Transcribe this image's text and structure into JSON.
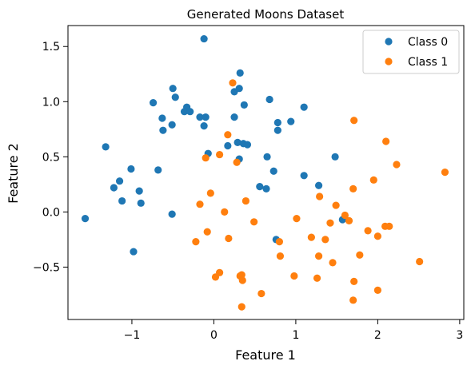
{
  "chart_data": {
    "type": "scatter",
    "title": "Generated Moons Dataset",
    "xlabel": "Feature 1",
    "ylabel": "Feature 2",
    "xlim": [
      -1.78,
      3.05
    ],
    "ylim": [
      -0.975,
      1.69
    ],
    "xticks": [
      -1,
      0,
      1,
      2,
      3
    ],
    "xtick_labels": [
      "−1",
      "0",
      "1",
      "2",
      "3"
    ],
    "yticks": [
      -0.5,
      0.0,
      0.5,
      1.0,
      1.5
    ],
    "ytick_labels": [
      "−0.5",
      "0.0",
      "0.5",
      "1.0",
      "1.5"
    ],
    "grid": false,
    "legend_position": "top-right",
    "series": [
      {
        "name": "Class 0",
        "color": "#1f77b4",
        "points": [
          [
            -0.12,
            1.57
          ],
          [
            0.32,
            1.26
          ],
          [
            -0.5,
            1.12
          ],
          [
            0.31,
            1.12
          ],
          [
            0.25,
            1.09
          ],
          [
            -0.47,
            1.04
          ],
          [
            0.68,
            1.02
          ],
          [
            -0.74,
            0.99
          ],
          [
            0.37,
            0.97
          ],
          [
            -0.33,
            0.95
          ],
          [
            1.1,
            0.95
          ],
          [
            -0.36,
            0.91
          ],
          [
            -0.29,
            0.91
          ],
          [
            -0.17,
            0.86
          ],
          [
            -0.1,
            0.86
          ],
          [
            -0.63,
            0.85
          ],
          [
            0.25,
            0.86
          ],
          [
            0.78,
            0.81
          ],
          [
            0.94,
            0.82
          ],
          [
            -0.51,
            0.79
          ],
          [
            -0.12,
            0.78
          ],
          [
            -0.62,
            0.74
          ],
          [
            0.78,
            0.74
          ],
          [
            0.29,
            0.63
          ],
          [
            0.36,
            0.62
          ],
          [
            0.41,
            0.61
          ],
          [
            0.17,
            0.6
          ],
          [
            -1.32,
            0.59
          ],
          [
            -0.07,
            0.53
          ],
          [
            0.65,
            0.5
          ],
          [
            1.48,
            0.5
          ],
          [
            0.31,
            0.48
          ],
          [
            -1.01,
            0.39
          ],
          [
            -0.68,
            0.38
          ],
          [
            0.73,
            0.37
          ],
          [
            1.1,
            0.33
          ],
          [
            -1.15,
            0.28
          ],
          [
            1.28,
            0.24
          ],
          [
            0.56,
            0.23
          ],
          [
            0.64,
            0.21
          ],
          [
            -1.22,
            0.22
          ],
          [
            -0.91,
            0.19
          ],
          [
            -1.12,
            0.1
          ],
          [
            -0.89,
            0.08
          ],
          [
            -0.51,
            -0.02
          ],
          [
            -1.57,
            -0.06
          ],
          [
            1.57,
            -0.07
          ],
          [
            0.76,
            -0.25
          ],
          [
            -0.98,
            -0.36
          ]
        ]
      },
      {
        "name": "Class 1",
        "color": "#ff7f0e",
        "points": [
          [
            0.23,
            1.17
          ],
          [
            1.71,
            0.83
          ],
          [
            0.17,
            0.7
          ],
          [
            2.1,
            0.64
          ],
          [
            0.07,
            0.52
          ],
          [
            -0.1,
            0.49
          ],
          [
            0.28,
            0.45
          ],
          [
            2.23,
            0.43
          ],
          [
            2.82,
            0.36
          ],
          [
            1.95,
            0.29
          ],
          [
            1.7,
            0.21
          ],
          [
            -0.04,
            0.17
          ],
          [
            1.29,
            0.14
          ],
          [
            0.39,
            0.1
          ],
          [
            -0.17,
            0.07
          ],
          [
            1.49,
            0.06
          ],
          [
            0.13,
            0.0
          ],
          [
            1.6,
            -0.03
          ],
          [
            1.01,
            -0.06
          ],
          [
            1.65,
            -0.08
          ],
          [
            0.49,
            -0.09
          ],
          [
            1.42,
            -0.1
          ],
          [
            2.09,
            -0.13
          ],
          [
            2.14,
            -0.13
          ],
          [
            1.88,
            -0.17
          ],
          [
            -0.08,
            -0.18
          ],
          [
            2.0,
            -0.22
          ],
          [
            1.19,
            -0.23
          ],
          [
            0.18,
            -0.24
          ],
          [
            1.36,
            -0.25
          ],
          [
            -0.22,
            -0.27
          ],
          [
            0.8,
            -0.27
          ],
          [
            1.78,
            -0.39
          ],
          [
            0.81,
            -0.4
          ],
          [
            1.28,
            -0.4
          ],
          [
            2.51,
            -0.45
          ],
          [
            1.45,
            -0.46
          ],
          [
            0.07,
            -0.55
          ],
          [
            0.34,
            -0.57
          ],
          [
            0.02,
            -0.59
          ],
          [
            0.32,
            -0.58
          ],
          [
            0.98,
            -0.58
          ],
          [
            1.26,
            -0.6
          ],
          [
            0.35,
            -0.62
          ],
          [
            1.71,
            -0.63
          ],
          [
            2.0,
            -0.71
          ],
          [
            0.58,
            -0.74
          ],
          [
            1.7,
            -0.8
          ],
          [
            0.34,
            -0.86
          ]
        ]
      }
    ]
  }
}
